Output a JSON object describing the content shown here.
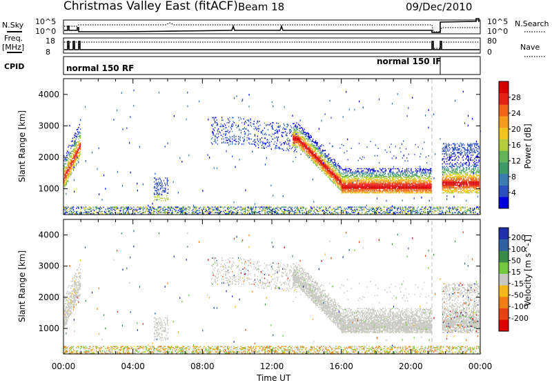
{
  "header": {
    "title": "Christmas Valley East (fitACF)",
    "beam": "Beam 18",
    "date": "09/Dec/2010"
  },
  "param_panels": {
    "nsky_label": "N.Sky",
    "nsearch_label": "N.Search",
    "nsky_ticks": [
      "10^5",
      "10^0"
    ],
    "nsearch_ticks": [
      "10^5",
      "10^0"
    ],
    "freq_label": "Freq.",
    "freq_unit": "[MHz]",
    "freq_ticks": [
      "18",
      "8"
    ],
    "nave_label": "Nave",
    "nave_ticks": [
      "80",
      "0"
    ],
    "cpid_label": "CPID",
    "cpid_left": "normal 150 RF",
    "cpid_right": "normal 150 IF"
  },
  "chart_data": [
    {
      "type": "heatmap",
      "name": "power",
      "ylabel": "Slant Range [km]",
      "ylim": [
        180,
        4500
      ],
      "xlim_hours": [
        0,
        24
      ],
      "yticks": [
        1000,
        2000,
        3000,
        4000
      ],
      "colorbar": {
        "label": "Power [dB]",
        "ticks": [
          "28",
          "24",
          "20",
          "16",
          "12",
          "8",
          "4"
        ],
        "tick_values": [
          28,
          24,
          20,
          16,
          12,
          8,
          4
        ],
        "range": [
          0,
          32
        ],
        "colors": [
          "#0000dd",
          "#2c4fbf",
          "#3a7cb0",
          "#3f9a6a",
          "#62b25a",
          "#b4cc3c",
          "#f2c41e",
          "#f49a1c",
          "#f0641a",
          "#e62214",
          "#d80000"
        ]
      }
    },
    {
      "type": "heatmap",
      "name": "velocity",
      "ylabel": "Slant Range [km]",
      "ylim": [
        180,
        4500
      ],
      "xlim_hours": [
        0,
        24
      ],
      "yticks": [
        1000,
        2000,
        3000,
        4000
      ],
      "colorbar": {
        "label": "Velocity [m s^-1]",
        "ticks": [
          "200",
          "100",
          "50",
          "15",
          "-15",
          "-50",
          "-100",
          "-200"
        ],
        "colors": [
          "#1f2fa8",
          "#2f60a0",
          "#3a8a4a",
          "#74c840",
          "#c8c8c0",
          "#f4b818",
          "#f07c14",
          "#e84010",
          "#dd0000"
        ]
      }
    }
  ],
  "xaxis": {
    "label": "Time UT",
    "tick_labels": [
      "00:00",
      "04:00",
      "08:00",
      "12:00",
      "16:00",
      "20:00",
      "00:00"
    ],
    "tick_hours": [
      0,
      4,
      8,
      12,
      16,
      20,
      24
    ]
  },
  "colors": {
    "ground_scatter": "#c8c8c0",
    "frame": "#000000"
  }
}
